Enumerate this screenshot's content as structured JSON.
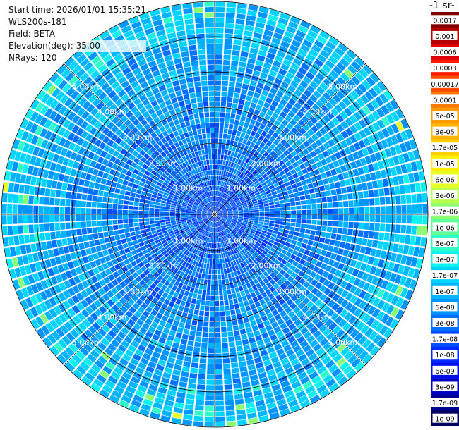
{
  "header": {
    "start_time": "Start time: 2026/01/01 15:35:21",
    "instrument": "WLS200s-181",
    "field": "Field: BETA",
    "elevation": "Elevation(deg): 35.00",
    "nrays": "NRays: 120"
  },
  "colorbar": {
    "unit_label": "-1 sr-",
    "levels": [
      {
        "label": "0.0017",
        "color": "#7f0000"
      },
      {
        "label": "0.001",
        "color": "#b30000"
      },
      {
        "label": "0.0006",
        "color": "#e00000"
      },
      {
        "label": "0.0003",
        "color": "#ff1a00"
      },
      {
        "label": "0.00017",
        "color": "#ff4d00"
      },
      {
        "label": "0.0001",
        "color": "#ff7a00"
      },
      {
        "label": "6e-05",
        "color": "#ff9a00"
      },
      {
        "label": "3e-05",
        "color": "#ffb400"
      },
      {
        "label": "1.7e-05",
        "color": "#ffd000"
      },
      {
        "label": "1e-05",
        "color": "#fff000"
      },
      {
        "label": "6e-06",
        "color": "#e8ff26"
      },
      {
        "label": "3e-06",
        "color": "#b8ff4f"
      },
      {
        "label": "1.7e-06",
        "color": "#8cff70"
      },
      {
        "label": "1e-06",
        "color": "#5cff9a"
      },
      {
        "label": "6e-07",
        "color": "#30ffc7"
      },
      {
        "label": "3e-07",
        "color": "#10f0ef"
      },
      {
        "label": "1.7e-07",
        "color": "#00d4ff"
      },
      {
        "label": "1e-07",
        "color": "#00b4ff"
      },
      {
        "label": "6e-08",
        "color": "#0094ff"
      },
      {
        "label": "3e-08",
        "color": "#0070ff"
      },
      {
        "label": "1.7e-08",
        "color": "#004cff"
      },
      {
        "label": "1e-08",
        "color": "#0028ff"
      },
      {
        "label": "6e-09",
        "color": "#0010e8"
      },
      {
        "label": "3e-09",
        "color": "#0000c0"
      },
      {
        "label": "1.7e-09",
        "color": "#000090"
      },
      {
        "label": "1e-09",
        "color": "#000060"
      }
    ]
  },
  "ppi": {
    "range_labels": [
      "1.00km",
      "2.00km",
      "3.00km",
      "4.00km",
      "5.00km"
    ],
    "nrays": 120
  }
}
